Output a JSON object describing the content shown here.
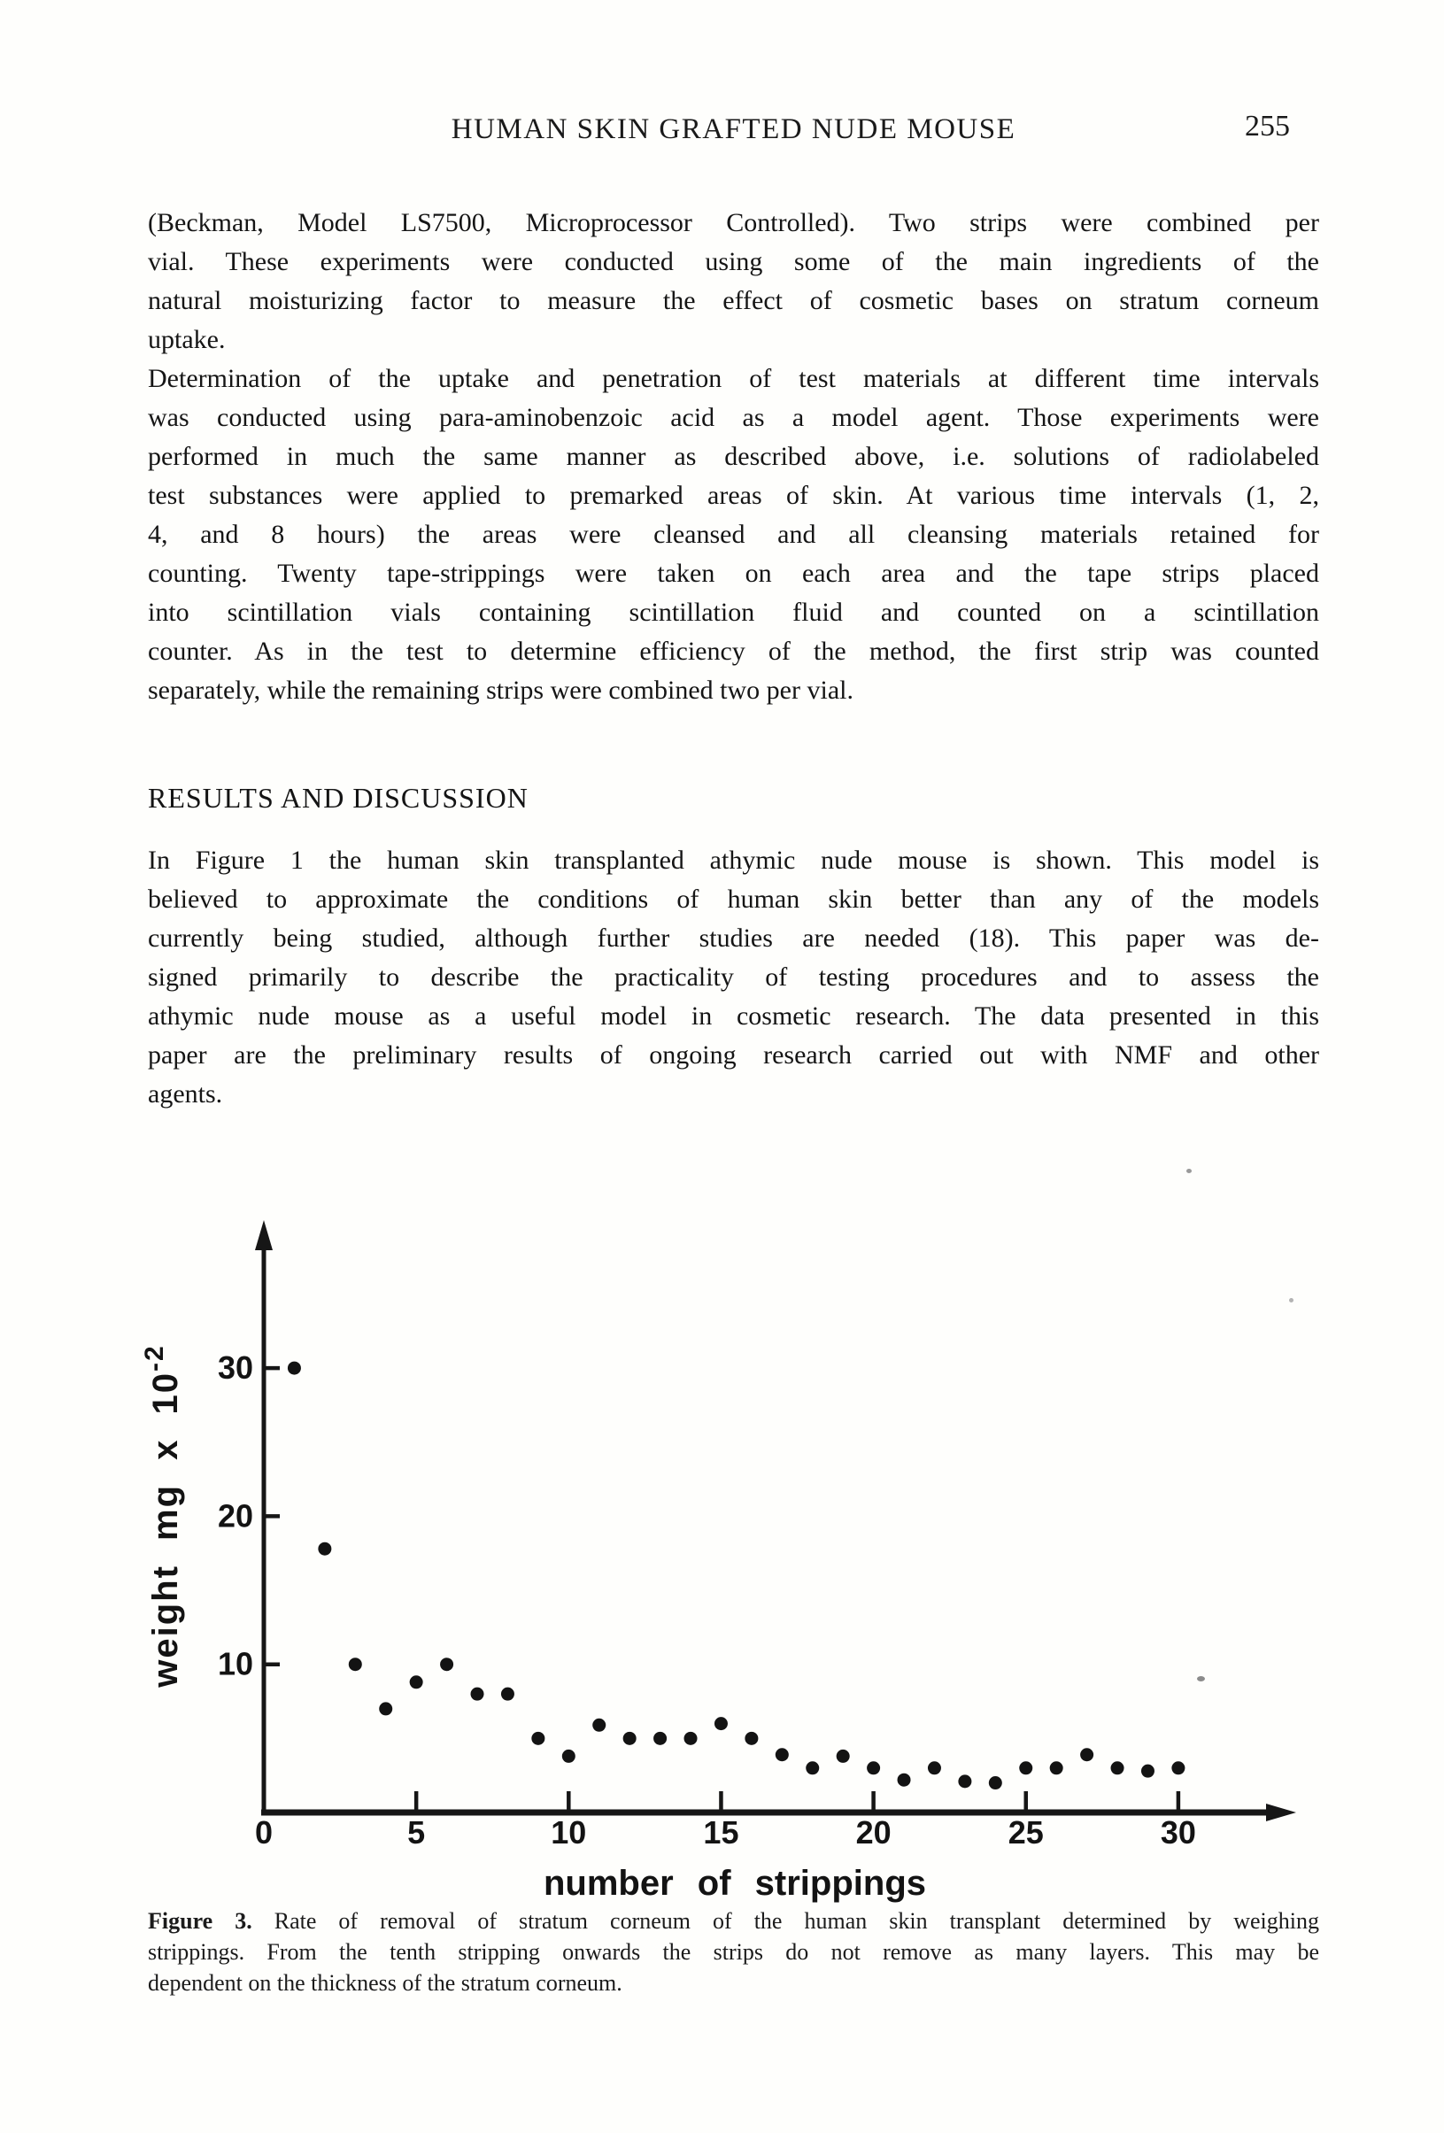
{
  "header": {
    "title": "HUMAN SKIN GRAFTED NUDE MOUSE",
    "page_number": "255"
  },
  "body": {
    "paragraph1": {
      "lines": [
        "(Beckman, Model LS7500, Microprocessor Controlled). Two strips were combined per",
        "vial. These experiments were conducted using some of the main ingredients of the",
        "natural moisturizing factor to measure the effect of cosmetic bases on stratum corneum",
        "uptake."
      ]
    },
    "paragraph2": {
      "lines": [
        "Determination of the uptake and penetration of test materials at different time intervals",
        "was conducted using para-aminobenzoic acid as a model agent. Those experiments were",
        "performed in much the same manner as described above, i.e. solutions of radiolabeled",
        "test substances were applied to premarked areas of skin. At various time intervals (1, 2,",
        "4, and 8 hours) the areas were cleansed and all cleansing materials retained for",
        "counting. Twenty tape-strippings were taken on each area and the tape strips placed",
        "into scintillation vials containing scintillation fluid and counted on a scintillation",
        "counter. As in the test to determine efficiency of the method, the first strip was counted",
        "separately, while the remaining strips were combined two per vial."
      ]
    },
    "heading": "RESULTS AND DISCUSSION",
    "paragraph3": {
      "lines": [
        "In Figure 1 the human skin transplanted athymic nude mouse is shown. This model is",
        "believed to approximate the conditions of human skin better than any of the models",
        "currently being studied, although further studies are needed (18). This paper was de-",
        "signed primarily to describe the practicality of testing procedures and to assess the",
        "athymic nude mouse as a useful model in cosmetic research. The data presented in this",
        "paper are the preliminary results of ongoing research carried out with NMF and other",
        "agents."
      ]
    }
  },
  "figure": {
    "caption_label": "Figure 3.",
    "caption_line1": "Rate of removal of stratum corneum of the human skin transplant determined by weighing",
    "caption_line2": "strippings. From the tenth stripping onwards the strips do not remove as many layers. This may be",
    "caption_line3": "dependent on the thickness of the stratum corneum."
  },
  "chart_data": {
    "type": "scatter",
    "x": [
      1,
      2,
      3,
      4,
      5,
      6,
      7,
      8,
      9,
      10,
      11,
      12,
      13,
      14,
      15,
      16,
      17,
      18,
      19,
      20,
      21,
      22,
      23,
      24,
      25,
      26,
      27,
      28,
      29,
      30
    ],
    "y": [
      30,
      17.8,
      10,
      7,
      8.8,
      10,
      8,
      8,
      5,
      3.8,
      5.9,
      5,
      5,
      5,
      6,
      5,
      3.9,
      3,
      3.8,
      3,
      2.2,
      3,
      2.1,
      2,
      3,
      3,
      3.9,
      3,
      2.8,
      3
    ],
    "xlabel": "number of strippings",
    "ylabel": "weight mg x 10⁻²",
    "ylabel_base": "weight  mg  x 10",
    "ylabel_exp": "-2",
    "x_ticks": [
      0,
      5,
      10,
      15,
      20,
      25,
      30
    ],
    "y_ticks": [
      10,
      20,
      30
    ],
    "xlim": [
      0,
      33
    ],
    "ylim": [
      0,
      40
    ],
    "grid": false,
    "marker": "filled-circle",
    "marker_color": "#131313"
  }
}
